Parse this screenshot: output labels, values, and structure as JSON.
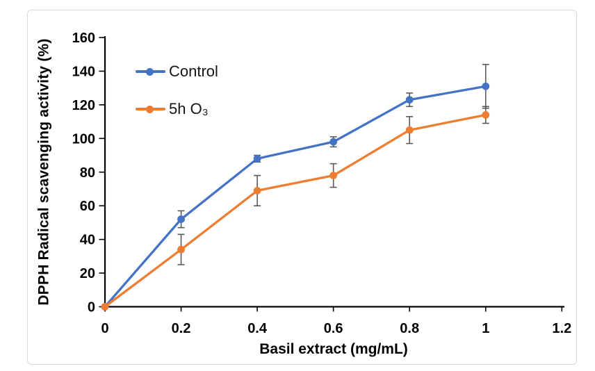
{
  "figure": {
    "background": "#ffffff",
    "frame_color": "#d8d8d8"
  },
  "chart_data": {
    "type": "line",
    "title": "",
    "xlabel": "Basil extract (mg/mL)",
    "ylabel": "DPPH Radical scavenging activity (%)",
    "x": [
      0,
      0.2,
      0.4,
      0.6,
      0.8,
      1
    ],
    "series": [
      {
        "name": "Control",
        "color": "#4472C4",
        "values": [
          0,
          52,
          88,
          98,
          123,
          131
        ],
        "error_bars": [
          0,
          5,
          2,
          3,
          4,
          13
        ]
      },
      {
        "name": "5h O₃",
        "color": "#ED7D31",
        "values": [
          0,
          34,
          69,
          78,
          105,
          114
        ],
        "error_bars": [
          0,
          9,
          9,
          7,
          8,
          5
        ]
      }
    ],
    "xlim": [
      0,
      1.2
    ],
    "ylim": [
      0,
      160
    ],
    "xticks": [
      0,
      0.2,
      0.4,
      0.6,
      0.8,
      1,
      1.2
    ],
    "xtick_labels": [
      "0",
      "0.2",
      "0.4",
      "0.6",
      "0.8",
      "1",
      "1.2"
    ],
    "yticks": [
      0,
      20,
      40,
      60,
      80,
      100,
      120,
      140,
      160
    ],
    "ytick_labels": [
      "0",
      "20",
      "40",
      "60",
      "80",
      "100",
      "120",
      "140",
      "160"
    ],
    "grid": false,
    "legend_position": "upper-left-inside",
    "marker": "circle",
    "axis_color": "#000000",
    "text_color": "#000000",
    "error_bar_color": "#595959"
  }
}
